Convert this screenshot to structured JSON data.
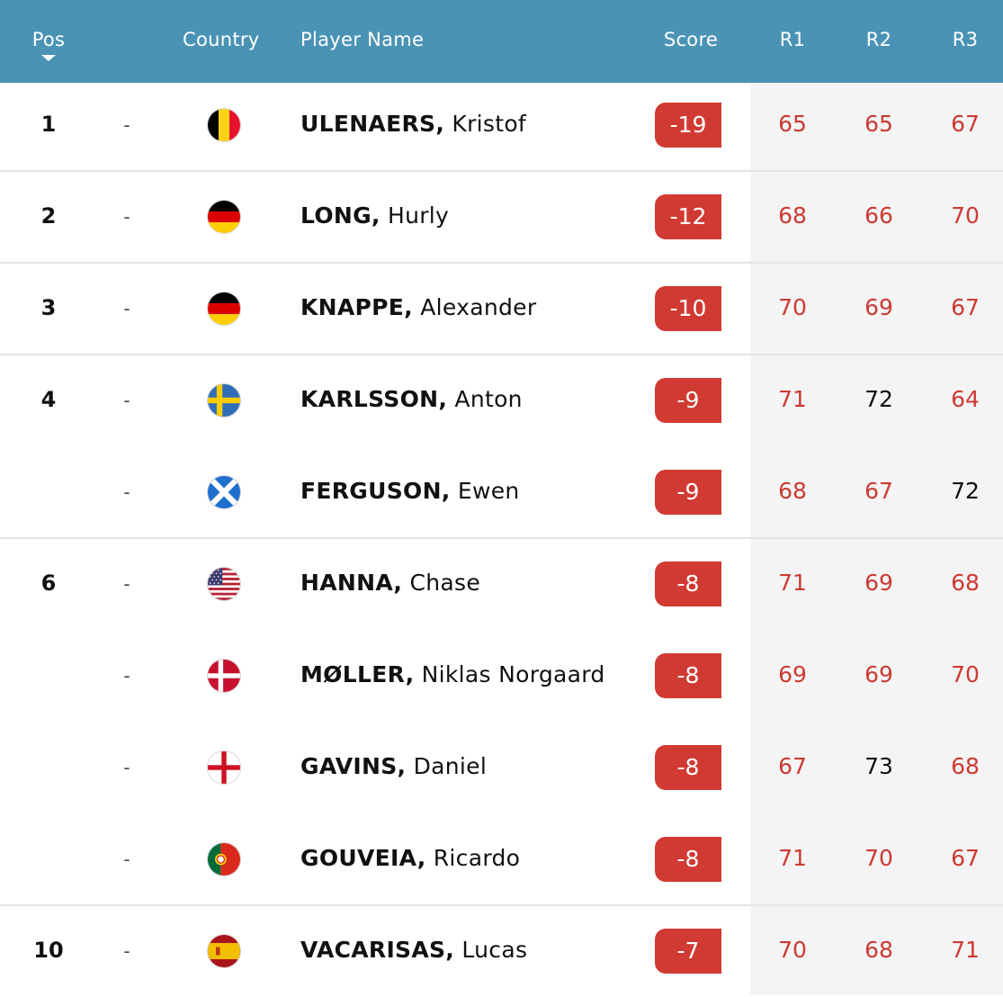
{
  "header": {
    "pos": "Pos",
    "country": "Country",
    "player_name": "Player Name",
    "score": "Score",
    "r1": "R1",
    "r2": "R2",
    "r3": "R3"
  },
  "colors": {
    "header_bg": "#4a93b5",
    "score_bg": "#d13a32",
    "under_par": "#cc3a33",
    "over_par": "#111111",
    "rounds_bg": "#f4f4f4"
  },
  "rows": [
    {
      "pos": "1",
      "move": "-",
      "flag": "belgium-flag-icon",
      "last": "ULENAERS,",
      "first": "Kristof",
      "score": "-19",
      "r1": "65",
      "r2": "65",
      "r3": "67"
    },
    {
      "pos": "2",
      "move": "-",
      "flag": "germany-flag-icon",
      "last": "LONG,",
      "first": "Hurly",
      "score": "-12",
      "r1": "68",
      "r2": "66",
      "r3": "70"
    },
    {
      "pos": "3",
      "move": "-",
      "flag": "germany-flag-icon",
      "last": "KNAPPE,",
      "first": "Alexander",
      "score": "-10",
      "r1": "70",
      "r2": "69",
      "r3": "67"
    },
    {
      "pos": "4",
      "move": "-",
      "flag": "sweden-flag-icon",
      "last": "KARLSSON,",
      "first": "Anton",
      "score": "-9",
      "r1": "71",
      "r2": "72",
      "r3": "64"
    },
    {
      "pos": "",
      "move": "-",
      "flag": "scotland-flag-icon",
      "last": "FERGUSON,",
      "first": "Ewen",
      "score": "-9",
      "r1": "68",
      "r2": "67",
      "r3": "72"
    },
    {
      "pos": "6",
      "move": "-",
      "flag": "usa-flag-icon",
      "last": "HANNA,",
      "first": "Chase",
      "score": "-8",
      "r1": "71",
      "r2": "69",
      "r3": "68"
    },
    {
      "pos": "",
      "move": "-",
      "flag": "denmark-flag-icon",
      "last": "MØLLER,",
      "first": "Niklas Norgaard",
      "score": "-8",
      "r1": "69",
      "r2": "69",
      "r3": "70"
    },
    {
      "pos": "",
      "move": "-",
      "flag": "england-flag-icon",
      "last": "GAVINS,",
      "first": "Daniel",
      "score": "-8",
      "r1": "67",
      "r2": "73",
      "r3": "68"
    },
    {
      "pos": "",
      "move": "-",
      "flag": "portugal-flag-icon",
      "last": "GOUVEIA,",
      "first": "Ricardo",
      "score": "-8",
      "r1": "71",
      "r2": "70",
      "r3": "67"
    },
    {
      "pos": "10",
      "move": "-",
      "flag": "spain-flag-icon",
      "last": "VACARISAS,",
      "first": "Lucas",
      "score": "-7",
      "r1": "70",
      "r2": "68",
      "r3": "71"
    }
  ]
}
